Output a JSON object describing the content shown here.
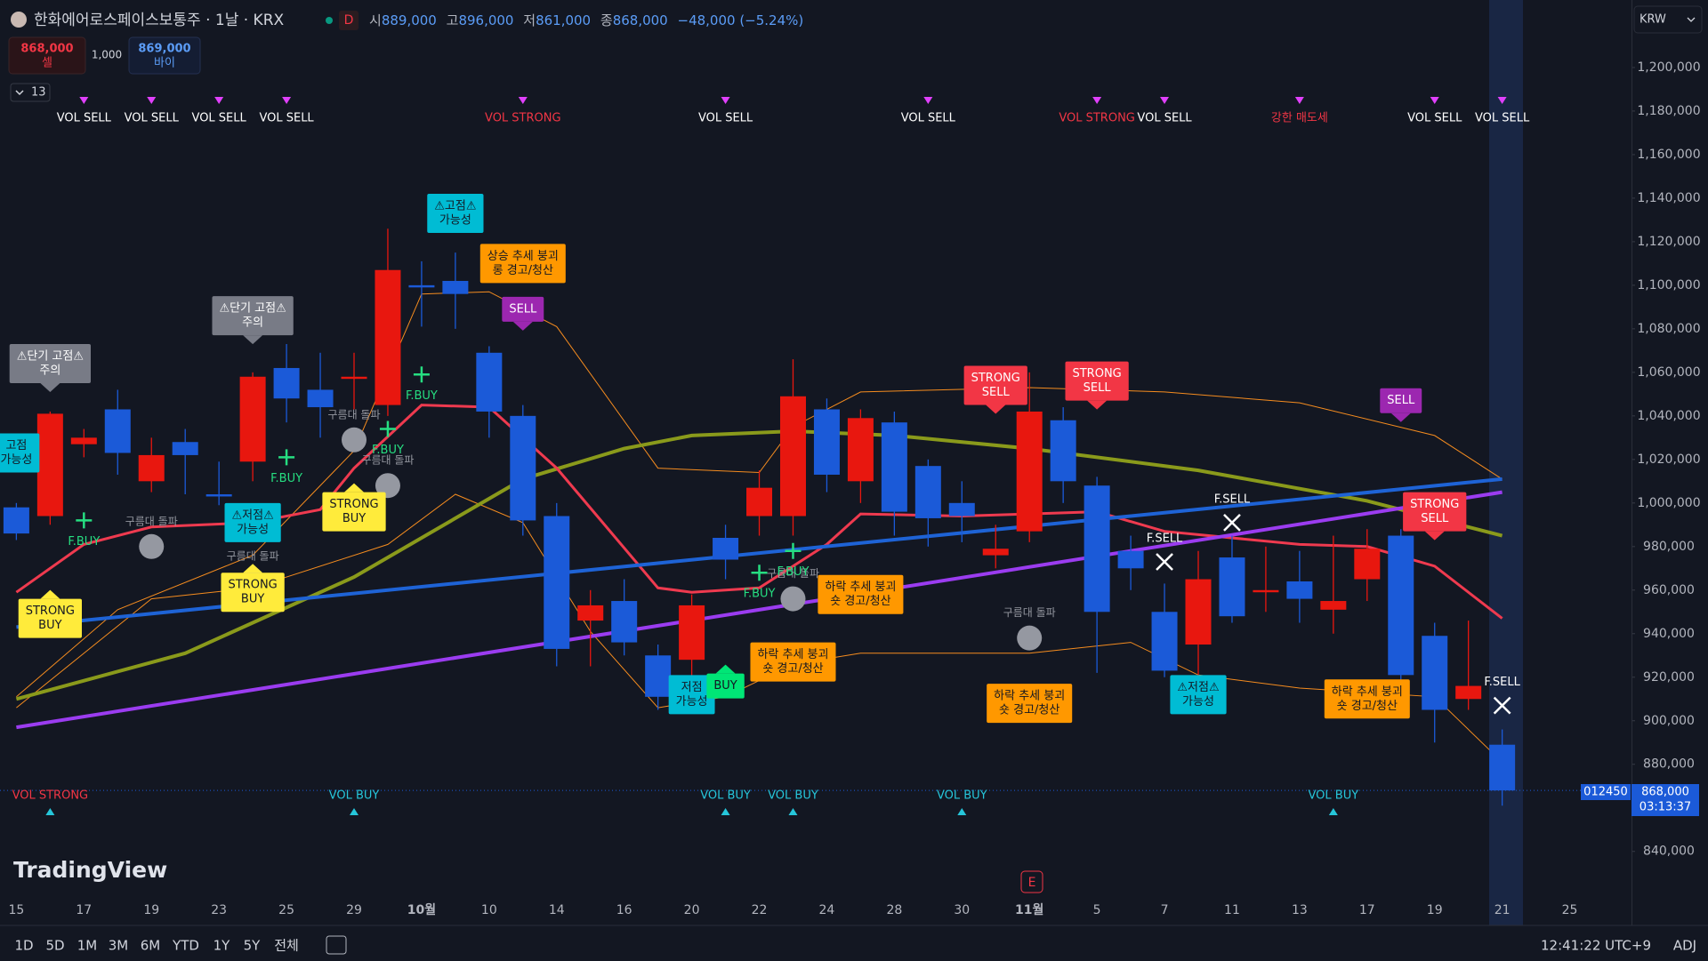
{
  "header": {
    "symbol": "한화에어로스페이스보통주 · 1날 · KRX",
    "interval_badge": "D",
    "ohlc": [
      {
        "label": "시",
        "value": "889,000"
      },
      {
        "label": "고",
        "value": "896,000"
      },
      {
        "label": "저",
        "value": "861,000"
      },
      {
        "label": "종",
        "value": "868,000"
      }
    ],
    "change": "−48,000 (−5.24%)",
    "sell_price": "868,000",
    "sell_label": "셀",
    "spread": "1,000",
    "buy_price": "869,000",
    "buy_label": "바이",
    "indicator_count": "13",
    "currency": "KRW"
  },
  "price_tag": {
    "symbol": "012450",
    "price": "868,000",
    "countdown": "03:13:37"
  },
  "logo": "TradingView",
  "earnings_marker": "E",
  "toolbar": {
    "ranges": [
      "1D",
      "5D",
      "1M",
      "3M",
      "6M",
      "YTD",
      "1Y",
      "5Y",
      "전체"
    ],
    "clock": "12:41:22 UTC+9",
    "adj": "ADJ"
  },
  "chart_data": {
    "type": "candlestick",
    "categories": [
      "15",
      null,
      "17",
      null,
      "19",
      null,
      "23",
      null,
      "25",
      null,
      "29",
      null,
      "10월",
      null,
      "10",
      null,
      "14",
      null,
      "16",
      null,
      "20",
      null,
      "22",
      null,
      "24",
      null,
      "28",
      null,
      "30",
      null,
      "11월",
      null,
      "5",
      null,
      "7",
      null,
      "11",
      null,
      "13",
      null,
      "17",
      null,
      "19",
      null,
      "21",
      null,
      "25"
    ],
    "open": [
      998000,
      994000,
      1027000,
      1043000,
      1010000,
      1028000,
      1004000,
      1019000,
      1062000,
      1052000,
      1057000,
      1045000,
      1100000,
      1102000,
      1069000,
      1040000,
      994000,
      946000,
      955000,
      930000,
      928000,
      984000,
      994000,
      994000,
      1043000,
      1010000,
      1037000,
      1017000,
      1000000,
      976000,
      987000,
      1038000,
      1008000,
      978000,
      950000,
      935000,
      975000,
      959000,
      964000,
      951000,
      965000,
      985000,
      939000,
      910000,
      889000,
      null,
      null
    ],
    "high": [
      1000000,
      1042000,
      1034000,
      1052000,
      1030000,
      1034000,
      1019000,
      1060000,
      1073000,
      1069000,
      1069000,
      1126000,
      1111000,
      1115000,
      1072000,
      1045000,
      1000000,
      960000,
      965000,
      935000,
      958000,
      990000,
      1015000,
      1066000,
      1048000,
      1043000,
      1042000,
      1020000,
      1010000,
      990000,
      1060000,
      1044000,
      1012000,
      985000,
      963000,
      978000,
      985000,
      980000,
      978000,
      985000,
      988000,
      988000,
      945000,
      946000,
      896000,
      null,
      null
    ],
    "low": [
      983000,
      990000,
      1021000,
      1013000,
      1005000,
      1004000,
      999000,
      1010000,
      1037000,
      1030000,
      1043000,
      1040000,
      1081000,
      1080000,
      1030000,
      985000,
      925000,
      925000,
      930000,
      905000,
      920000,
      965000,
      985000,
      985000,
      1005000,
      1000000,
      985000,
      980000,
      982000,
      970000,
      982000,
      1000000,
      922000,
      960000,
      920000,
      920000,
      945000,
      950000,
      945000,
      940000,
      955000,
      918000,
      890000,
      905000,
      861000,
      null,
      null
    ],
    "close": [
      986000,
      1041000,
      1030000,
      1023000,
      1022000,
      1022000,
      1003000,
      1058000,
      1048000,
      1044000,
      1058000,
      1107000,
      1099000,
      1096000,
      1042000,
      992000,
      933000,
      953000,
      936000,
      911000,
      953000,
      974000,
      1007000,
      1049000,
      1013000,
      1039000,
      996000,
      993000,
      994000,
      979000,
      1042000,
      1010000,
      950000,
      970000,
      923000,
      965000,
      948000,
      960000,
      956000,
      955000,
      979000,
      921000,
      905000,
      916000,
      868000,
      null,
      null
    ],
    "up_color": "#e8170f",
    "down_color": "#1b5ad8",
    "ylim": [
      806000,
      1231000
    ],
    "yticks": [
      {
        "value": 1200000,
        "label": "1,200,000"
      },
      {
        "value": 1180000,
        "label": "1,180,000"
      },
      {
        "value": 1160000,
        "label": "1,160,000"
      },
      {
        "value": 1140000,
        "label": "1,140,000"
      },
      {
        "value": 1120000,
        "label": "1,120,000"
      },
      {
        "value": 1100000,
        "label": "1,100,000"
      },
      {
        "value": 1080000,
        "label": "1,080,000"
      },
      {
        "value": 1060000,
        "label": "1,060,000"
      },
      {
        "value": 1040000,
        "label": "1,040,000"
      },
      {
        "value": 1020000,
        "label": "1,020,000"
      },
      {
        "value": 1000000,
        "label": "1,000,000"
      },
      {
        "value": 980000,
        "label": "980,000"
      },
      {
        "value": 960000,
        "label": "960,000"
      },
      {
        "value": 940000,
        "label": "940,000"
      },
      {
        "value": 920000,
        "label": "920,000"
      },
      {
        "value": 900000,
        "label": "900,000"
      },
      {
        "value": 880000,
        "label": "880,000"
      },
      {
        "value": 840000,
        "label": "840,000"
      }
    ],
    "current_price": 868000,
    "lines": [
      {
        "color": "#f58c1f",
        "width": 1,
        "x": [
          0,
          4,
          7,
          11,
          13,
          15,
          17,
          19,
          21,
          23,
          25,
          30,
          33,
          35,
          38,
          42,
          44
        ],
        "values": [
          906000,
          956000,
          961000,
          981000,
          1004000,
          991000,
          941000,
          906000,
          911000,
          926000,
          931000,
          931000,
          936000,
          921000,
          915000,
          911000,
          881000
        ]
      },
      {
        "color": "#f58c1f",
        "width": 1,
        "x": [
          0,
          3,
          7,
          10,
          12,
          14,
          16,
          19,
          22,
          23,
          25,
          30,
          34,
          38,
          42,
          44
        ],
        "values": [
          911000,
          951000,
          976000,
          1024000,
          1096000,
          1097000,
          1081000,
          1016000,
          1014000,
          1035000,
          1051000,
          1053000,
          1051000,
          1046000,
          1031000,
          1011000
        ]
      },
      {
        "color": "#8a9a1b",
        "width": 4,
        "x": [
          0,
          5,
          10,
          15,
          18,
          20,
          23,
          26,
          30,
          35,
          40,
          44
        ],
        "values": [
          910000,
          931000,
          966000,
          1011000,
          1025000,
          1031000,
          1033000,
          1031000,
          1025000,
          1015000,
          1001000,
          985000
        ]
      },
      {
        "color": "#ef3a4f",
        "width": 3,
        "x": [
          0,
          2,
          4,
          7,
          9,
          10,
          12,
          14,
          16,
          19,
          20,
          22,
          24,
          25,
          28,
          30,
          32,
          34,
          38,
          40,
          42,
          44
        ],
        "values": [
          959000,
          981000,
          989000,
          991000,
          997000,
          1016000,
          1045000,
          1044000,
          1016000,
          961000,
          959000,
          961000,
          981000,
          995000,
          994000,
          995000,
          996000,
          987000,
          981000,
          980000,
          971000,
          947000
        ]
      },
      {
        "color": "#1e63d6",
        "width": 4,
        "x": [
          0,
          44
        ],
        "values": [
          943000,
          1011000
        ]
      },
      {
        "color": "#9b3cf0",
        "width": 4,
        "x": [
          0,
          44
        ],
        "values": [
          897000,
          1005000
        ]
      }
    ],
    "top_signals": [
      {
        "x": 2,
        "label": "VOL SELL",
        "color": "#ffffff"
      },
      {
        "x": 4,
        "label": "VOL SELL",
        "color": "#ffffff"
      },
      {
        "x": 6,
        "label": "VOL SELL",
        "color": "#ffffff"
      },
      {
        "x": 8,
        "label": "VOL SELL",
        "color": "#ffffff"
      },
      {
        "x": 15,
        "label": "VOL STRONG",
        "color": "#f23645"
      },
      {
        "x": 21,
        "label": "VOL SELL",
        "color": "#ffffff"
      },
      {
        "x": 27,
        "label": "VOL SELL",
        "color": "#ffffff"
      },
      {
        "x": 32,
        "label": "VOL STRONG",
        "color": "#f23645"
      },
      {
        "x": 34,
        "label": "VOL SELL",
        "color": "#ffffff"
      },
      {
        "x": 38,
        "label": "강한 매도세",
        "color": "#f23645"
      },
      {
        "x": 42,
        "label": "VOL SELL",
        "color": "#ffffff"
      },
      {
        "x": 44,
        "label": "VOL SELL",
        "color": "#ffffff"
      }
    ],
    "bottom_signals": [
      {
        "x": 1,
        "label": "VOL STRONG",
        "color": "#f23645"
      },
      {
        "x": 10,
        "label": "VOL BUY",
        "color": "#26c6da"
      },
      {
        "x": 21,
        "label": "VOL BUY",
        "color": "#26c6da"
      },
      {
        "x": 23,
        "label": "VOL BUY",
        "color": "#26c6da"
      },
      {
        "x": 28,
        "label": "VOL BUY",
        "color": "#26c6da"
      },
      {
        "x": 39,
        "label": "VOL BUY",
        "color": "#26c6da"
      }
    ],
    "annotations": [
      {
        "kind": "circle",
        "x": 4,
        "y": 980000,
        "label": "구름대 돌파"
      },
      {
        "kind": "circle",
        "x": 10,
        "y": 1029000,
        "label": "구름대 돌파"
      },
      {
        "kind": "circle",
        "x": 11,
        "y": 1008000,
        "label": "구름대 돌파"
      },
      {
        "kind": "circle",
        "x": 7,
        "y": 964000,
        "label": "구름대 돌파"
      },
      {
        "kind": "circle",
        "x": 23,
        "y": 956000,
        "label": "구름대 돌파"
      },
      {
        "kind": "circle",
        "x": 30,
        "y": 938000,
        "label": "구름대 돌파"
      },
      {
        "kind": "plus",
        "x": 2,
        "y": 992000,
        "label": "F.BUY"
      },
      {
        "kind": "plus",
        "x": 8,
        "y": 1021000,
        "label": "F.BUY"
      },
      {
        "kind": "plus",
        "x": 11,
        "y": 1034000,
        "label": "F.BUY"
      },
      {
        "kind": "plus",
        "x": 12,
        "y": 1059000,
        "label": "F.BUY"
      },
      {
        "kind": "plus",
        "x": 22,
        "y": 968000,
        "label": "F.BUY"
      },
      {
        "kind": "plus",
        "x": 23,
        "y": 978000,
        "label": "F.BUY"
      },
      {
        "kind": "cross",
        "x": 34,
        "y": 973000,
        "label": "F.SELL"
      },
      {
        "kind": "cross",
        "x": 36,
        "y": 991000,
        "label": "F.SELL"
      },
      {
        "kind": "cross",
        "x": 44,
        "y": 907000,
        "label": "F.SELL"
      },
      {
        "kind": "box",
        "x": 1,
        "y": 1064000,
        "lines": [
          "⚠단기 고점⚠",
          "주의"
        ],
        "color": "#787b86",
        "text_color": "#ffffff",
        "pointer": "down"
      },
      {
        "kind": "box",
        "x": 7,
        "y": 1086000,
        "lines": [
          "⚠단기 고점⚠",
          "주의"
        ],
        "color": "#787b86",
        "text_color": "#ffffff",
        "pointer": "down"
      },
      {
        "kind": "box",
        "x": 13,
        "y": 1133000,
        "lines": [
          "⚠고점⚠",
          "가능성"
        ],
        "color": "#00bcd4",
        "text_color": "#131722",
        "pointer": "none"
      },
      {
        "kind": "box",
        "x": 0,
        "y": 1023000,
        "lines": [
          "고점",
          "가능성"
        ],
        "color": "#00bcd4",
        "text_color": "#131722",
        "pointer": "none"
      },
      {
        "kind": "box",
        "x": 7,
        "y": 991000,
        "lines": [
          "⚠저점⚠",
          "가능성"
        ],
        "color": "#00bcd4",
        "text_color": "#131722",
        "pointer": "none"
      },
      {
        "kind": "box",
        "x": 20,
        "y": 912000,
        "lines": [
          "저점",
          "가능성"
        ],
        "color": "#00bcd4",
        "text_color": "#131722",
        "pointer": "none"
      },
      {
        "kind": "box",
        "x": 35,
        "y": 912000,
        "lines": [
          "⚠저점⚠",
          "가능성"
        ],
        "color": "#00bcd4",
        "text_color": "#131722",
        "pointer": "none"
      },
      {
        "kind": "box",
        "x": 15,
        "y": 1110000,
        "lines": [
          "상승 추세 붕괴",
          "롱 경고/청산"
        ],
        "color": "#ff9800",
        "text_color": "#131722",
        "pointer": "none"
      },
      {
        "kind": "box",
        "x": 23,
        "y": 927000,
        "lines": [
          "하락 추세 붕괴",
          "숏 경고/청산"
        ],
        "color": "#ff9800",
        "text_color": "#131722",
        "pointer": "none"
      },
      {
        "kind": "box",
        "x": 25,
        "y": 958000,
        "lines": [
          "하락 추세 붕괴",
          "숏 경고/청산"
        ],
        "color": "#ff9800",
        "text_color": "#131722",
        "pointer": "none"
      },
      {
        "kind": "box",
        "x": 30,
        "y": 908000,
        "lines": [
          "하락 추세 붕괴",
          "숏 경고/청산"
        ],
        "color": "#ff9800",
        "text_color": "#131722",
        "pointer": "none"
      },
      {
        "kind": "box",
        "x": 40,
        "y": 910000,
        "lines": [
          "하락 추세 붕괴",
          "숏 경고/청산"
        ],
        "color": "#ff9800",
        "text_color": "#131722",
        "pointer": "none"
      },
      {
        "kind": "box",
        "x": 15,
        "y": 1089000,
        "lines": [
          "SELL"
        ],
        "color": "#9c27b0",
        "text_color": "#ffffff",
        "pointer": "down"
      },
      {
        "kind": "box",
        "x": 41,
        "y": 1047000,
        "lines": [
          "SELL"
        ],
        "color": "#9c27b0",
        "text_color": "#ffffff",
        "pointer": "down"
      },
      {
        "kind": "box",
        "x": 29,
        "y": 1054000,
        "lines": [
          "STRONG",
          "SELL"
        ],
        "color": "#f23645",
        "text_color": "#ffffff",
        "pointer": "down"
      },
      {
        "kind": "box",
        "x": 32,
        "y": 1056000,
        "lines": [
          "STRONG",
          "SELL"
        ],
        "color": "#f23645",
        "text_color": "#ffffff",
        "pointer": "down"
      },
      {
        "kind": "box",
        "x": 42,
        "y": 996000,
        "lines": [
          "STRONG",
          "SELL"
        ],
        "color": "#f23645",
        "text_color": "#ffffff",
        "pointer": "down"
      },
      {
        "kind": "box",
        "x": 1,
        "y": 947000,
        "lines": [
          "STRONG",
          "BUY"
        ],
        "color": "#ffeb3b",
        "text_color": "#131722",
        "pointer": "up"
      },
      {
        "kind": "box",
        "x": 10,
        "y": 996000,
        "lines": [
          "STRONG",
          "BUY"
        ],
        "color": "#ffeb3b",
        "text_color": "#131722",
        "pointer": "up"
      },
      {
        "kind": "box",
        "x": 7,
        "y": 959000,
        "lines": [
          "STRONG",
          "BUY"
        ],
        "color": "#ffeb3b",
        "text_color": "#131722",
        "pointer": "up"
      },
      {
        "kind": "box",
        "x": 21,
        "y": 916000,
        "lines": [
          "BUY"
        ],
        "color": "#00e676",
        "text_color": "#131722",
        "pointer": "up"
      }
    ]
  }
}
